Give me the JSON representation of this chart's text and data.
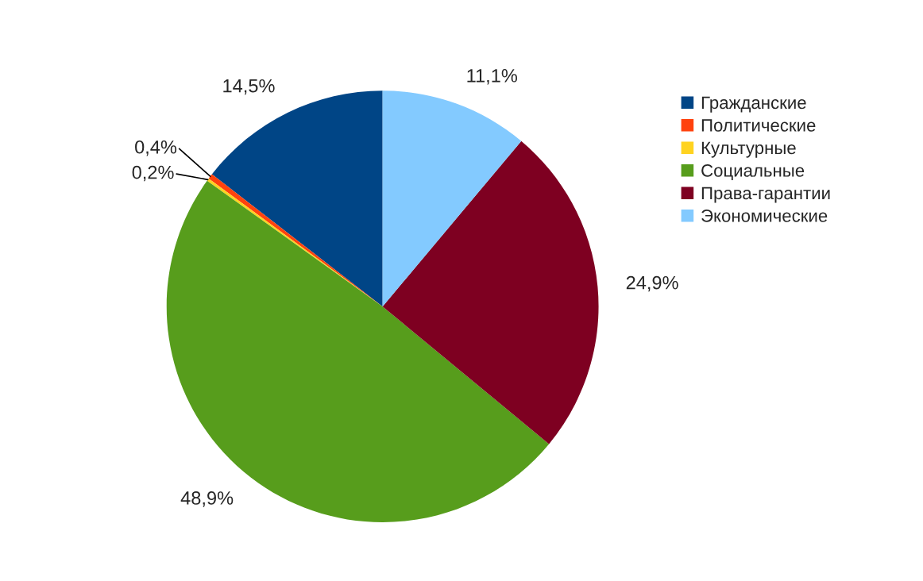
{
  "chart_data": {
    "type": "pie",
    "categories": [
      "Гражданские",
      "Политические",
      "Культурные",
      "Социальные",
      "Права-гарантии",
      "Экономические"
    ],
    "values": [
      14.5,
      0.4,
      0.2,
      48.9,
      24.9,
      11.1
    ],
    "value_labels": [
      "14,5%",
      "0,4%",
      "0,2%",
      "48,9%",
      "24,9%",
      "11,1%"
    ],
    "colors": [
      "#004586",
      "#ff420e",
      "#ffd320",
      "#579d1c",
      "#7e0021",
      "#83caff"
    ],
    "legend": "right"
  }
}
